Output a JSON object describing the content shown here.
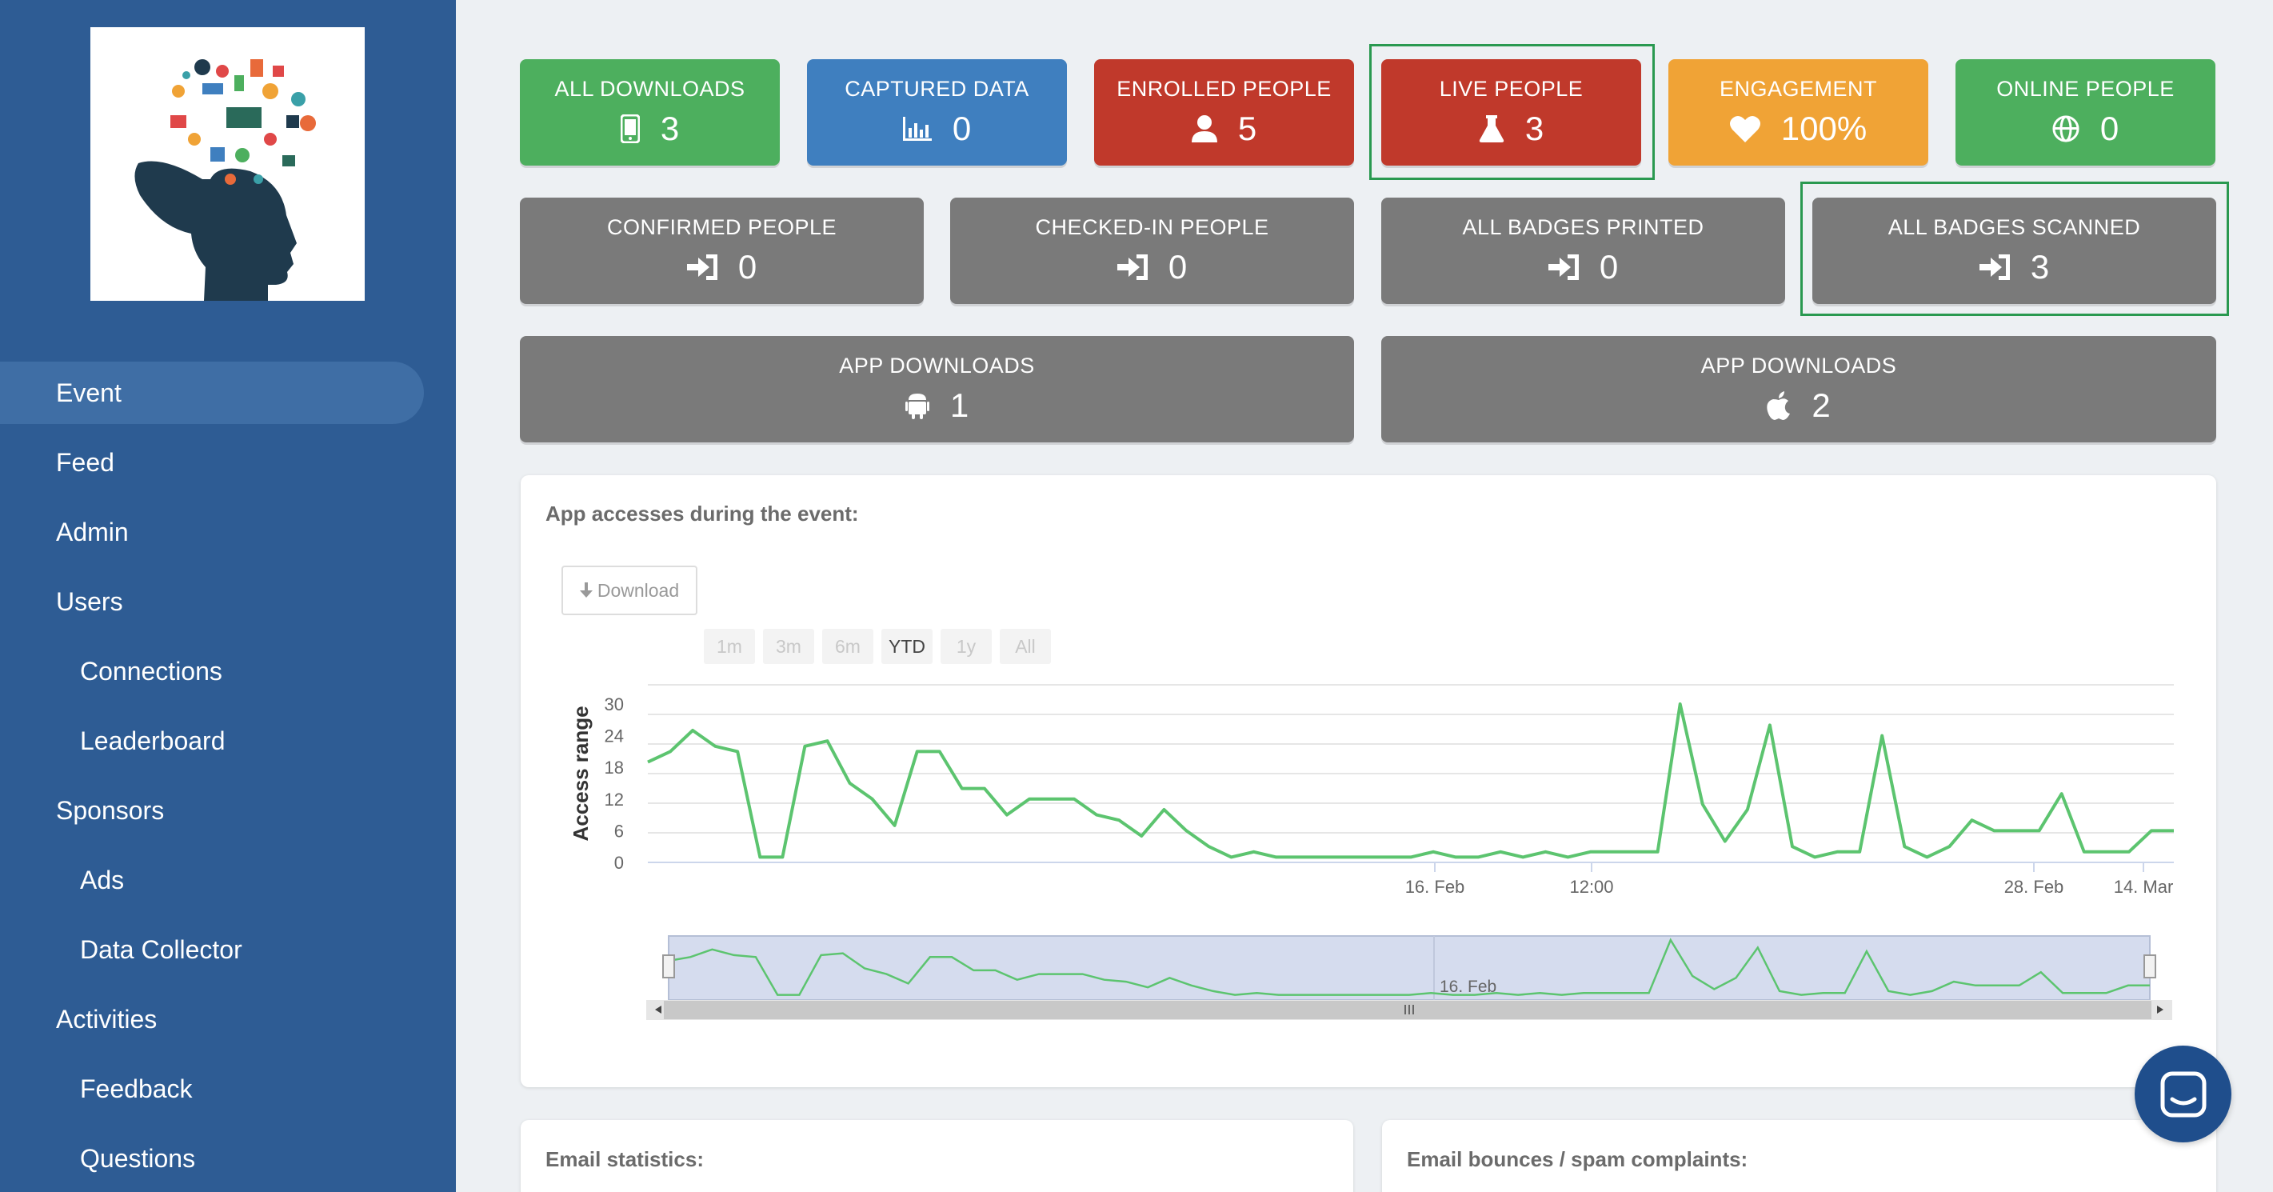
{
  "sidebar": {
    "items": [
      {
        "label": "Event",
        "active": true
      },
      {
        "label": "Feed"
      },
      {
        "label": "Admin"
      },
      {
        "label": "Users"
      },
      {
        "label": "Connections",
        "sub": true
      },
      {
        "label": "Leaderboard",
        "sub": true
      },
      {
        "label": "Sponsors"
      },
      {
        "label": "Ads",
        "sub": true
      },
      {
        "label": "Data Collector",
        "sub": true
      },
      {
        "label": "Activities"
      },
      {
        "label": "Feedback",
        "sub": true
      },
      {
        "label": "Questions",
        "sub": true
      }
    ]
  },
  "tiles": {
    "all_downloads": {
      "label": "ALL DOWNLOADS",
      "value": "3",
      "icon": "mobile-icon",
      "color": "#4daf5e"
    },
    "captured_data": {
      "label": "CAPTURED DATA",
      "value": "0",
      "icon": "bar-chart-icon",
      "color": "#3f7fbf"
    },
    "enrolled_people": {
      "label": "ENROLLED PEOPLE",
      "value": "5",
      "icon": "user-icon",
      "color": "#c0392b"
    },
    "live_people": {
      "label": "LIVE PEOPLE",
      "value": "3",
      "icon": "flask-icon",
      "color": "#c0392b"
    },
    "engagement": {
      "label": "ENGAGEMENT",
      "value": "100%",
      "icon": "heart-icon",
      "color": "#f0a336"
    },
    "online_people": {
      "label": "ONLINE PEOPLE",
      "value": "0",
      "icon": "globe-icon",
      "color": "#4daf5e"
    },
    "confirmed_people": {
      "label": "CONFIRMED PEOPLE",
      "value": "0",
      "icon": "sign-in-icon",
      "color": "#7a7a7a"
    },
    "checked_in_people": {
      "label": "CHECKED-IN PEOPLE",
      "value": "0",
      "icon": "sign-in-icon",
      "color": "#7a7a7a"
    },
    "all_badges_printed": {
      "label": "ALL BADGES PRINTED",
      "value": "0",
      "icon": "sign-in-icon",
      "color": "#7a7a7a"
    },
    "all_badges_scanned": {
      "label": "ALL BADGES SCANNED",
      "value": "3",
      "icon": "sign-in-icon",
      "color": "#7a7a7a"
    },
    "app_downloads_android": {
      "label": "APP DOWNLOADS",
      "value": "1",
      "icon": "android-icon",
      "color": "#7a7a7a"
    },
    "app_downloads_ios": {
      "label": "APP DOWNLOADS",
      "value": "2",
      "icon": "apple-icon",
      "color": "#7a7a7a"
    }
  },
  "access_panel": {
    "title": "App accesses during the event:",
    "download_label": "Download",
    "ranges": [
      {
        "label": "1m"
      },
      {
        "label": "3m"
      },
      {
        "label": "6m"
      },
      {
        "label": "YTD",
        "selected": true
      },
      {
        "label": "1y"
      },
      {
        "label": "All"
      }
    ],
    "navigator_label": "16. Feb"
  },
  "chart_data": {
    "type": "line",
    "ylabel": "Access range",
    "y_ticks": [
      "0",
      "6",
      "12",
      "18",
      "24",
      "30"
    ],
    "x_ticks": [
      "16. Feb",
      "12:00",
      "28. Feb",
      "14. Mar"
    ],
    "ylim": [
      0,
      30
    ],
    "grid": true,
    "line_color": "#5cc46f",
    "series": [
      {
        "values": [
          19,
          21,
          25,
          22,
          21,
          1,
          1,
          22,
          23,
          15,
          12,
          7,
          21,
          21,
          14,
          14,
          9,
          12,
          12,
          12,
          9,
          8,
          5,
          10,
          6,
          3,
          1,
          2,
          1,
          1,
          1,
          1,
          1,
          1,
          1,
          2,
          1,
          1,
          2,
          1,
          2,
          1,
          2,
          2,
          2,
          2,
          30,
          11,
          4,
          10,
          26,
          3,
          1,
          2,
          2,
          24,
          3,
          1,
          3,
          8,
          6,
          6,
          6,
          13,
          2,
          2,
          2,
          6,
          6
        ]
      }
    ]
  },
  "bottom_panels": {
    "email_statistics": "Email statistics:",
    "email_bounces": "Email bounces / spam complaints:"
  },
  "chat": {
    "icon": "chat-icon"
  }
}
